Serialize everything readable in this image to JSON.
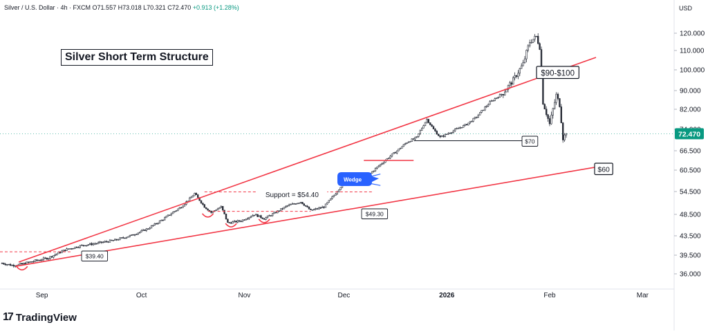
{
  "header": {
    "symbol": "Silver / U.S. Dollar · 4h · FXCM",
    "open": "O71.557",
    "high": "H73.018",
    "low": "L70.321",
    "close": "C72.470",
    "change": "+0.913 (+1.28%)"
  },
  "currency": "USD",
  "brand": "TradingView",
  "colors": {
    "up": "#089981",
    "down": "#f23645",
    "trendline": "#f23645",
    "wedge": "#2962ff",
    "price_badge": "#089981",
    "candle_ink": "#2a2e39"
  },
  "chart_data": {
    "type": "candlestick",
    "title": "Silver Short Term Structure",
    "y_ticks": [
      "120.000",
      "110.000",
      "100.000",
      "90.000",
      "82.000",
      "74.000",
      "66.500",
      "60.500",
      "54.500",
      "48.500",
      "43.500",
      "39.500",
      "36.000"
    ],
    "x_ticks": [
      "Sep",
      "Oct",
      "Nov",
      "Dec",
      "2026",
      "Feb",
      "Mar"
    ],
    "last_price": "72.470",
    "price_path": [
      [
        "Aug 20",
        38.0
      ],
      [
        "Aug 23",
        37.6
      ],
      [
        "Aug 26",
        37.8
      ],
      [
        "Aug 29",
        38.3
      ],
      [
        "Sep 3",
        39.0
      ],
      [
        "Sep 8",
        40.6
      ],
      [
        "Sep 13",
        41.5
      ],
      [
        "Sep 18",
        42.0
      ],
      [
        "Sep 23",
        42.6
      ],
      [
        "Sep 28",
        43.6
      ],
      [
        "Oct 3",
        45.2
      ],
      [
        "Oct 8",
        47.6
      ],
      [
        "Oct 13",
        50.5
      ],
      [
        "Oct 16",
        53.0
      ],
      [
        "Oct 17",
        54.0
      ],
      [
        "Oct 20",
        50.5
      ],
      [
        "Oct 22",
        49.0
      ],
      [
        "Oct 25",
        50.5
      ],
      [
        "Oct 27",
        46.5
      ],
      [
        "Oct 31",
        47.0
      ],
      [
        "Nov 4",
        48.5
      ],
      [
        "Nov 7",
        47.5
      ],
      [
        "Nov 10",
        48.8
      ],
      [
        "Nov 14",
        50.8
      ],
      [
        "Nov 18",
        51.8
      ],
      [
        "Nov 21",
        49.5
      ],
      [
        "Nov 25",
        50.5
      ],
      [
        "Nov 28",
        53.5
      ],
      [
        "Dec 1",
        57.0
      ],
      [
        "Dec 4",
        57.4
      ],
      [
        "Dec 7",
        57.8
      ],
      [
        "Dec 10",
        60.5
      ],
      [
        "Dec 14",
        64.0
      ],
      [
        "Dec 17",
        66.5
      ],
      [
        "Dec 20",
        69.5
      ],
      [
        "Dec 23",
        71.2
      ],
      [
        "Dec 26",
        78.0
      ],
      [
        "Dec 28",
        74.0
      ],
      [
        "Dec 30",
        71.2
      ],
      [
        "Jan 3",
        73.5
      ],
      [
        "Jan 7",
        76.0
      ],
      [
        "Jan 10",
        79.0
      ],
      [
        "Jan 14",
        85.0
      ],
      [
        "Jan 18",
        89.0
      ],
      [
        "Jan 21",
        95.0
      ],
      [
        "Jan 24",
        103.0
      ],
      [
        "Jan 26",
        115.0
      ],
      [
        "Jan 28",
        118.0
      ],
      [
        "Jan 29",
        112.0
      ],
      [
        "Jan 30",
        85.0
      ],
      [
        "Feb 1",
        76.0
      ],
      [
        "Feb 3",
        88.0
      ],
      [
        "Feb 4",
        84.0
      ],
      [
        "Feb 5",
        71.0
      ],
      [
        "Feb 6",
        72.47
      ]
    ],
    "annotations": {
      "support_label": "Support = $54.40",
      "support_price": 54.4,
      "lower_support_price": 49.3,
      "low_label_left": "$39.40",
      "low_label_mid": "$49.30",
      "wedge_label": "Wedge",
      "target_upper_label": "$90-$100",
      "level_70_label": "$70",
      "level_60_label": "$60"
    }
  }
}
